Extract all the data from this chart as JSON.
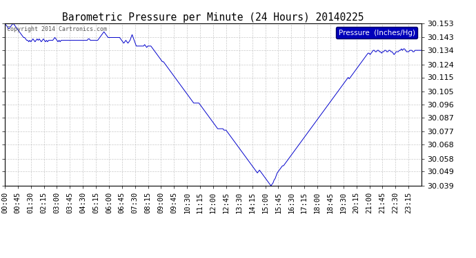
{
  "title": "Barometric Pressure per Minute (24 Hours) 20140225",
  "copyright_text": "Copyright 2014 Cartronics.com",
  "legend_label": "Pressure  (Inches/Hg)",
  "line_color": "#0000cc",
  "background_color": "#ffffff",
  "grid_color": "#bbbbbb",
  "legend_bg_color": "#0000bb",
  "legend_text_color": "#ffffff",
  "ylim": [
    30.039,
    30.153
  ],
  "yticks": [
    30.039,
    30.049,
    30.058,
    30.068,
    30.077,
    30.087,
    30.096,
    30.105,
    30.115,
    30.124,
    30.134,
    30.143,
    30.153
  ],
  "xtick_labels": [
    "00:00",
    "00:45",
    "01:30",
    "02:15",
    "03:00",
    "03:45",
    "04:30",
    "05:15",
    "06:00",
    "06:45",
    "07:30",
    "08:15",
    "09:00",
    "09:45",
    "10:30",
    "11:15",
    "12:00",
    "12:45",
    "13:30",
    "14:15",
    "15:00",
    "15:45",
    "16:30",
    "17:15",
    "18:00",
    "18:45",
    "19:30",
    "20:15",
    "21:00",
    "21:45",
    "22:30",
    "23:15"
  ],
  "pressure_data": [
    30.152,
    30.152,
    30.151,
    30.15,
    30.149,
    30.15,
    30.151,
    30.152,
    30.153,
    30.152,
    30.151,
    30.15,
    30.149,
    30.148,
    30.147,
    30.146,
    30.145,
    30.144,
    30.143,
    30.143,
    30.142,
    30.141,
    30.141,
    30.14,
    30.141,
    30.14,
    30.141,
    30.142,
    30.141,
    30.14,
    30.141,
    30.142,
    30.141,
    30.142,
    30.141,
    30.14,
    30.141,
    30.142,
    30.141,
    30.14,
    30.141,
    30.14,
    30.141,
    30.141,
    30.141,
    30.141,
    30.141,
    30.142,
    30.143,
    30.142,
    30.141,
    30.14,
    30.141,
    30.14,
    30.141,
    30.141,
    30.141,
    30.141,
    30.141,
    30.141,
    30.141,
    30.141,
    30.141,
    30.141,
    30.141,
    30.141,
    30.141,
    30.141,
    30.141,
    30.141,
    30.141,
    30.141,
    30.141,
    30.141,
    30.141,
    30.141,
    30.141,
    30.141,
    30.141,
    30.141,
    30.142,
    30.142,
    30.141,
    30.141,
    30.141,
    30.141,
    30.141,
    30.141,
    30.141,
    30.141,
    30.142,
    30.143,
    30.144,
    30.145,
    30.146,
    30.147,
    30.146,
    30.145,
    30.144,
    30.143,
    30.143,
    30.143,
    30.143,
    30.143,
    30.143,
    30.143,
    30.143,
    30.143,
    30.143,
    30.143,
    30.143,
    30.142,
    30.141,
    30.14,
    30.139,
    30.14,
    30.141,
    30.14,
    30.139,
    30.14,
    30.141,
    30.143,
    30.145,
    30.143,
    30.141,
    30.139,
    30.137,
    30.137,
    30.137,
    30.137,
    30.137,
    30.137,
    30.137,
    30.137,
    30.138,
    30.137,
    30.136,
    30.137,
    30.137,
    30.137,
    30.137,
    30.136,
    30.135,
    30.134,
    30.133,
    30.132,
    30.131,
    30.13,
    30.129,
    30.128,
    30.127,
    30.126,
    30.126,
    30.125,
    30.124,
    30.123,
    30.122,
    30.121,
    30.12,
    30.119,
    30.118,
    30.117,
    30.116,
    30.115,
    30.114,
    30.113,
    30.112,
    30.111,
    30.11,
    30.109,
    30.108,
    30.107,
    30.106,
    30.105,
    30.104,
    30.103,
    30.102,
    30.101,
    30.1,
    30.099,
    30.098,
    30.097,
    30.097,
    30.097,
    30.097,
    30.097,
    30.097,
    30.096,
    30.095,
    30.094,
    30.093,
    30.092,
    30.091,
    30.09,
    30.089,
    30.088,
    30.087,
    30.086,
    30.085,
    30.084,
    30.083,
    30.082,
    30.081,
    30.08,
    30.079,
    30.079,
    30.079,
    30.079,
    30.079,
    30.079,
    30.078,
    30.078,
    30.078,
    30.077,
    30.076,
    30.075,
    30.074,
    30.073,
    30.072,
    30.071,
    30.07,
    30.069,
    30.068,
    30.067,
    30.066,
    30.065,
    30.064,
    30.063,
    30.062,
    30.061,
    30.06,
    30.059,
    30.058,
    30.057,
    30.056,
    30.055,
    30.054,
    30.053,
    30.052,
    30.051,
    30.05,
    30.049,
    30.048,
    30.049,
    30.05,
    30.049,
    30.048,
    30.047,
    30.046,
    30.045,
    30.044,
    30.043,
    30.042,
    30.041,
    30.04,
    30.039,
    30.04,
    30.041,
    30.043,
    30.044,
    30.046,
    30.048,
    30.049,
    30.05,
    30.051,
    30.052,
    30.053,
    30.053,
    30.054,
    30.055,
    30.056,
    30.057,
    30.058,
    30.059,
    30.06,
    30.061,
    30.062,
    30.063,
    30.064,
    30.065,
    30.066,
    30.067,
    30.068,
    30.069,
    30.07,
    30.071,
    30.072,
    30.073,
    30.074,
    30.075,
    30.076,
    30.077,
    30.078,
    30.079,
    30.08,
    30.081,
    30.082,
    30.083,
    30.084,
    30.085,
    30.086,
    30.087,
    30.088,
    30.089,
    30.09,
    30.091,
    30.092,
    30.093,
    30.094,
    30.095,
    30.096,
    30.097,
    30.098,
    30.099,
    30.1,
    30.101,
    30.102,
    30.103,
    30.104,
    30.105,
    30.106,
    30.107,
    30.108,
    30.109,
    30.11,
    30.111,
    30.112,
    30.113,
    30.114,
    30.115,
    30.114,
    30.115,
    30.116,
    30.117,
    30.118,
    30.119,
    30.12,
    30.121,
    30.122,
    30.123,
    30.124,
    30.125,
    30.126,
    30.127,
    30.128,
    30.129,
    30.13,
    30.131,
    30.132,
    30.132,
    30.131,
    30.132,
    30.133,
    30.134,
    30.134,
    30.133,
    30.133,
    30.134,
    30.134,
    30.133,
    30.133,
    30.132,
    30.133,
    30.133,
    30.134,
    30.134,
    30.133,
    30.133,
    30.134,
    30.134,
    30.133,
    30.133,
    30.132,
    30.131,
    30.132,
    30.133,
    30.133,
    30.133,
    30.134,
    30.134,
    30.135,
    30.134,
    30.135,
    30.135,
    30.134,
    30.133,
    30.133,
    30.133,
    30.134,
    30.134,
    30.134,
    30.133,
    30.133,
    30.134,
    30.134,
    30.134,
    30.134,
    30.134,
    30.134,
    30.134
  ]
}
